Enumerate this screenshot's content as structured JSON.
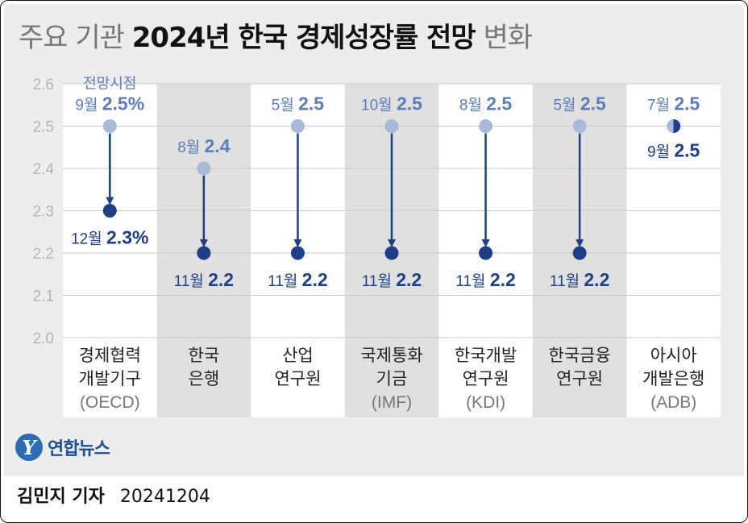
{
  "title": {
    "light1": "주요 기관",
    "bold": "2024년 한국 경제성장률 전망",
    "light2": "변화"
  },
  "colors": {
    "before": "#a8b9da",
    "after": "#1d3f87",
    "before_text": "#5b7dbf",
    "after_text": "#1d3f87",
    "grid": "#c9c9c9",
    "band": "#e0e0e0",
    "plot_bg": "#ffffff",
    "axis_text": "#b3b3b3"
  },
  "chart_data": {
    "type": "dumbbell",
    "title": "주요 기관 2024년 한국 경제성장률 전망 변화",
    "ylim": [
      2.0,
      2.6
    ],
    "yticks": [
      "2.0",
      "2.1",
      "2.2",
      "2.3",
      "2.4",
      "2.5",
      "2.6"
    ],
    "legend_label": "전망시점",
    "institutions": [
      {
        "name_lines": [
          "경제협력",
          "개발기구",
          "(OECD)"
        ],
        "before": 2.5,
        "before_month": "9월",
        "before_label": "2.5%",
        "after": 2.3,
        "after_month": "12월",
        "after_label": "2.3%"
      },
      {
        "name_lines": [
          "한국",
          "은행"
        ],
        "before": 2.4,
        "before_month": "8월",
        "before_label": "2.4",
        "after": 2.2,
        "after_month": "11월",
        "after_label": "2.2"
      },
      {
        "name_lines": [
          "산업",
          "연구원"
        ],
        "before": 2.5,
        "before_month": "5월",
        "before_label": "2.5",
        "after": 2.2,
        "after_month": "11월",
        "after_label": "2.2"
      },
      {
        "name_lines": [
          "국제통화",
          "기금",
          "(IMF)"
        ],
        "before": 2.5,
        "before_month": "10월",
        "before_label": "2.5",
        "after": 2.2,
        "after_month": "11월",
        "after_label": "2.2"
      },
      {
        "name_lines": [
          "한국개발",
          "연구원",
          "(KDI)"
        ],
        "before": 2.5,
        "before_month": "8월",
        "before_label": "2.5",
        "after": 2.2,
        "after_month": "11월",
        "after_label": "2.2"
      },
      {
        "name_lines": [
          "한국금융",
          "연구원"
        ],
        "before": 2.5,
        "before_month": "5월",
        "before_label": "2.5",
        "after": 2.2,
        "after_month": "11월",
        "after_label": "2.2"
      },
      {
        "name_lines": [
          "아시아",
          "개발은행",
          "(ADB)"
        ],
        "before": 2.5,
        "before_month": "7월",
        "before_label": "2.5",
        "after": 2.5,
        "after_month": "9월",
        "after_label": "2.5"
      }
    ]
  },
  "logo": {
    "mark": "Y",
    "name": "연합뉴스"
  },
  "footer": {
    "author": "김민지 기자",
    "date": "20241204"
  }
}
